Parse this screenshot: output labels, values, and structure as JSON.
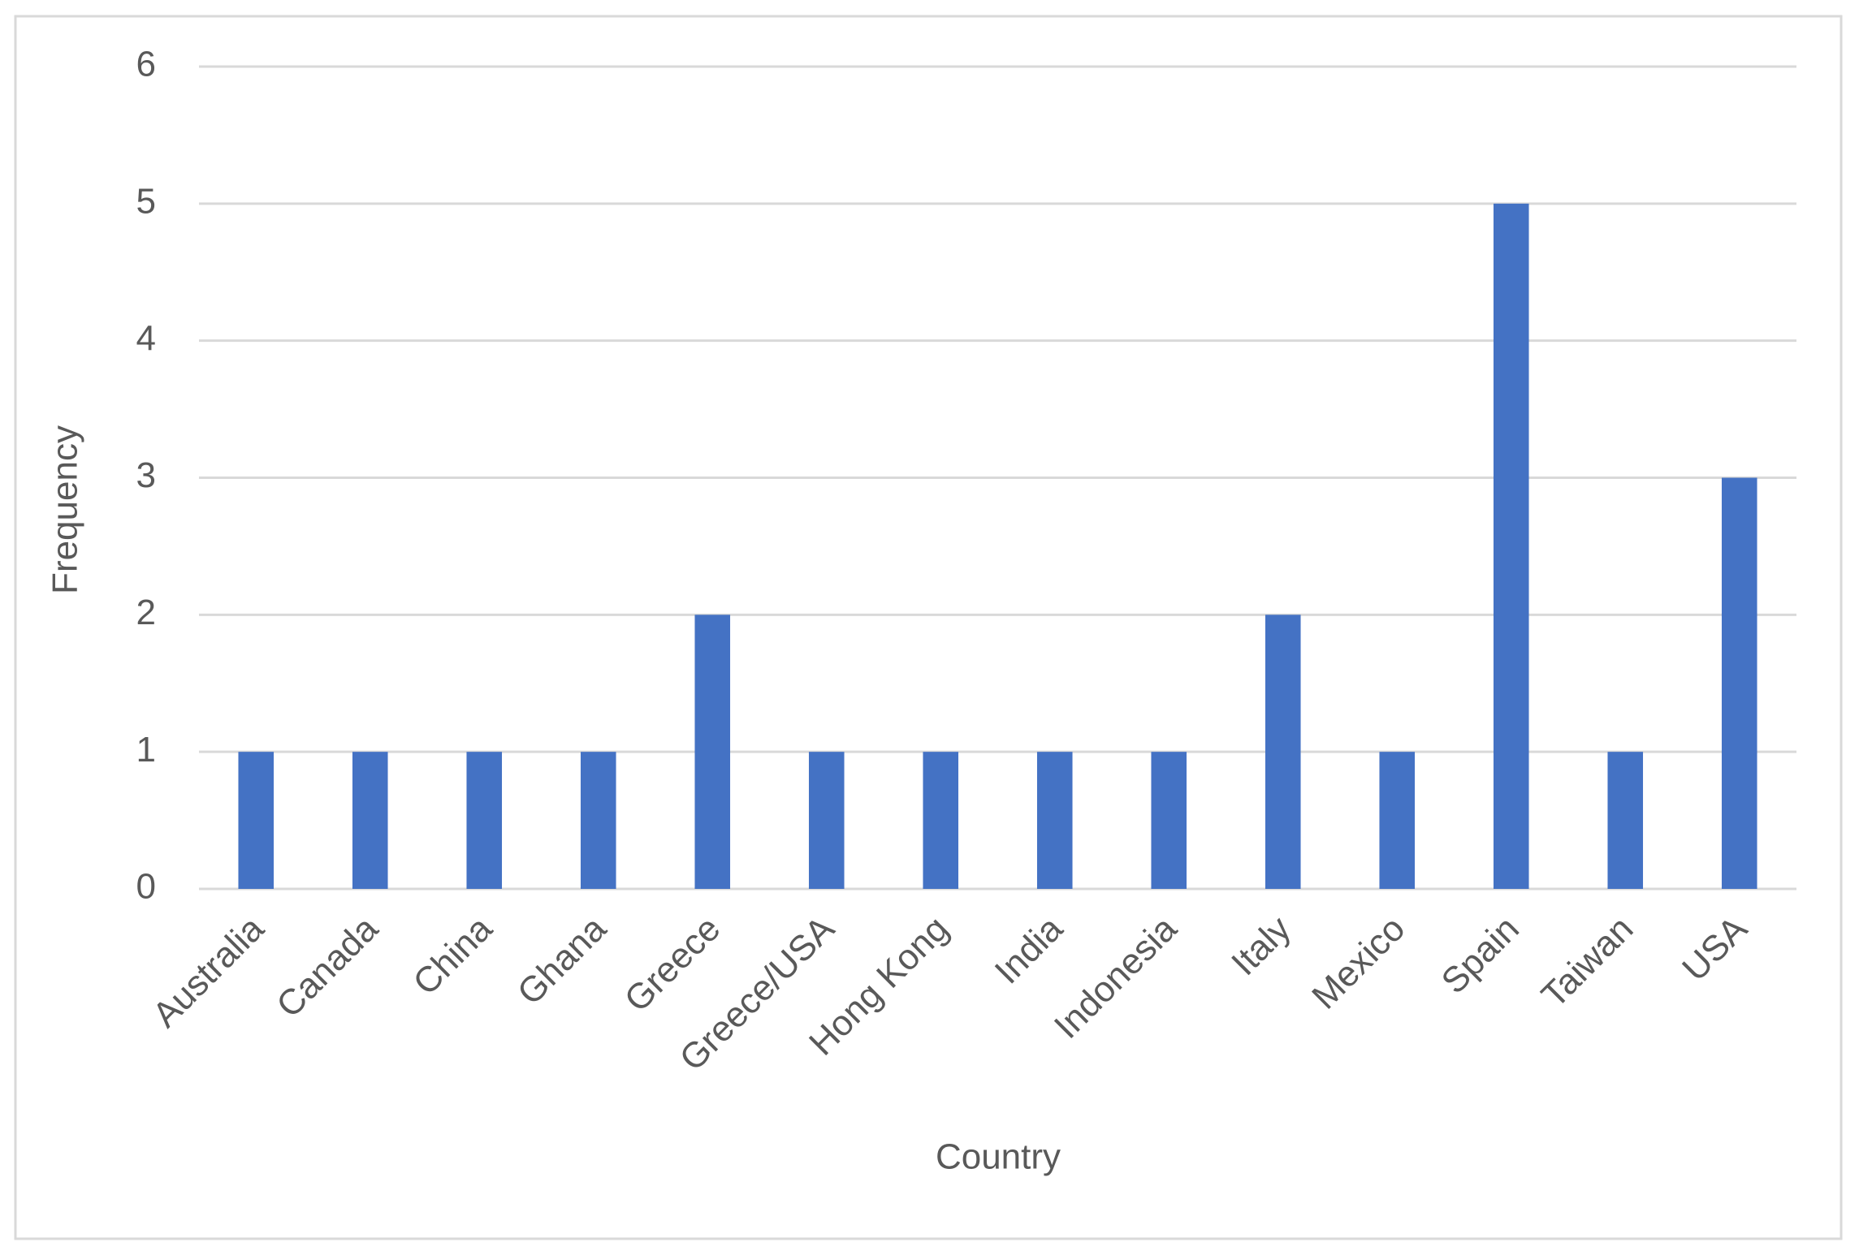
{
  "chart_data": {
    "type": "bar",
    "x_label": "Country",
    "y_label": "Frequency",
    "categories": [
      "Australia",
      "Canada",
      "China",
      "Ghana",
      "Greece",
      "Greece/USA",
      "Hong Kong",
      "India",
      "Indonesia",
      "Italy",
      "Mexico",
      "Spain",
      "Taiwan",
      "USA"
    ],
    "values": [
      1,
      1,
      1,
      1,
      2,
      1,
      1,
      1,
      1,
      2,
      1,
      5,
      1,
      3
    ],
    "color": "#4472c4",
    "ylim": [
      0,
      6
    ],
    "yticks": [
      0,
      1,
      2,
      3,
      4,
      5,
      6
    ],
    "grid": true
  }
}
